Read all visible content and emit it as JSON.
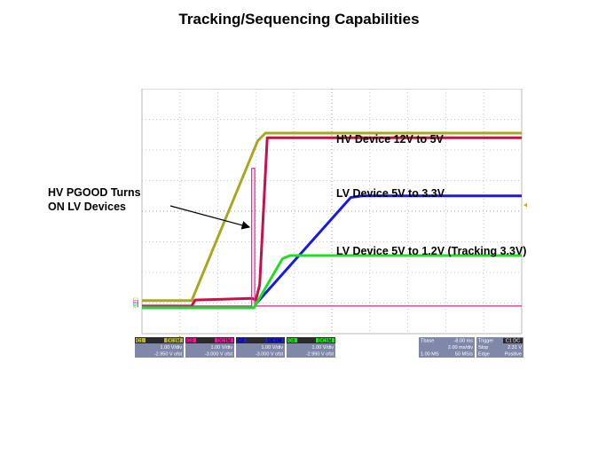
{
  "title": "Tracking/Sequencing Capabilities",
  "annotations": {
    "pgood_line1": "HV PGOOD Turns",
    "pgood_line2": "ON LV Devices",
    "hv": "HV Device 12V to 5V",
    "lv33": "LV Device 5V to 3.3V",
    "lv12": "LV Device 5V to 1.2V (Tracking 3.3V)"
  },
  "channels": [
    {
      "id": "C1",
      "coupling": "DC1M",
      "scale": "1.00 V/div",
      "offset": "-2.950 V ofst",
      "color": "#b5b52a"
    },
    {
      "id": "C2",
      "coupling": "DC1M",
      "scale": "1.00 V/div",
      "offset": "-3.000 V ofst",
      "color": "#e8189a"
    },
    {
      "id": "C3",
      "coupling": "DC1M",
      "scale": "1.00 V/div",
      "offset": "-3.000 V ofst",
      "color": "#1a1ae0"
    },
    {
      "id": "C4",
      "coupling": "DC1M",
      "scale": "1.00 V/div",
      "offset": "-2.990 V ofst",
      "color": "#22dd22"
    }
  ],
  "timebase": {
    "label": "Tbase",
    "value": "-8.00 ms",
    "rate": "2.00 ms/div",
    "samples": "1.00 MS",
    "sample_rate": "50 MS/s"
  },
  "trigger": {
    "label": "Trigger",
    "badge": "C1 DC",
    "mode": "Stop",
    "level": "2.31 V",
    "type": "Edge",
    "slope": "Positive"
  },
  "chart_data": {
    "type": "line",
    "title": "Tracking/Sequencing Capabilities",
    "xlabel": "",
    "ylabel": "",
    "xlim": [
      0,
      10
    ],
    "ylim": [
      0,
      8
    ],
    "grid": true,
    "series": [
      {
        "name": "HV Device 12V to 5V",
        "color": "#a8a820",
        "x": [
          0,
          1.31,
          3.05,
          3.25,
          10
        ],
        "y": [
          1.08,
          1.08,
          6.3,
          6.55,
          6.55
        ]
      },
      {
        "name": "",
        "color": "#c8104a",
        "x": [
          0,
          1.31,
          1.4,
          2.9,
          3.0,
          3.1,
          3.3,
          10
        ],
        "y": [
          0.9,
          0.9,
          1.1,
          1.15,
          1.1,
          1.6,
          6.4,
          6.4
        ]
      },
      {
        "name": "",
        "color": "#e8189a",
        "x": [
          0,
          2.89,
          2.89,
          2.97,
          2.97,
          10
        ],
        "y": [
          0.9,
          0.9,
          5.4,
          5.4,
          0.9,
          0.9
        ]
      },
      {
        "name": "LV Device 5V to 3.3V",
        "color": "#1a1ae0",
        "x": [
          0,
          2.95,
          3.02,
          5.5,
          5.8,
          10
        ],
        "y": [
          0.85,
          0.85,
          1.0,
          4.45,
          4.5,
          4.5
        ]
      },
      {
        "name": "LV Device 5V to 1.2V (Tracking 3.3V)",
        "color": "#22dd22",
        "x": [
          0,
          2.95,
          3.02,
          3.7,
          3.9,
          10
        ],
        "y": [
          0.85,
          0.85,
          1.0,
          2.45,
          2.55,
          2.55
        ]
      }
    ]
  }
}
